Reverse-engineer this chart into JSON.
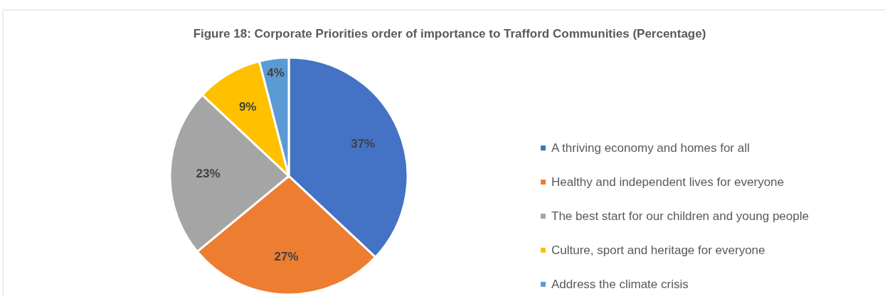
{
  "chart_data": {
    "type": "pie",
    "title": "Figure 18: Corporate Priorities order of importance to Trafford Communities  (Percentage)",
    "categories": [
      "A thriving economy and homes for all",
      "Healthy and independent lives for everyone",
      "The best start for our children and young people",
      "Culture, sport and heritage for everyone",
      "Address the climate crisis"
    ],
    "values": [
      37,
      27,
      23,
      9,
      4
    ],
    "colors": [
      "#4472c4",
      "#ed7d31",
      "#a5a5a5",
      "#ffc000",
      "#5b9bd5"
    ],
    "value_labels": [
      "37%",
      "27%",
      "23%",
      "9%",
      "4%"
    ],
    "legend": "right"
  }
}
